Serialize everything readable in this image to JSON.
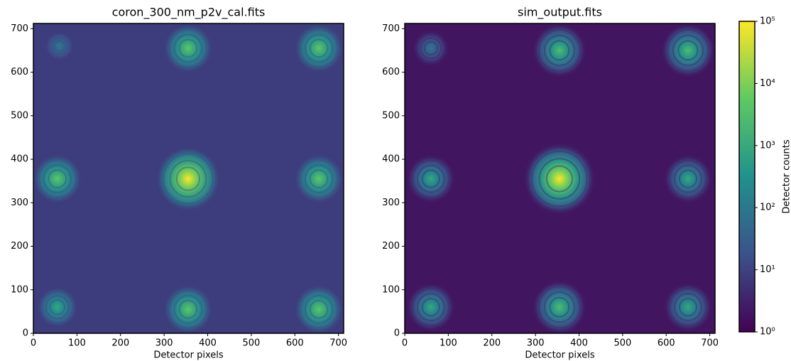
{
  "chart_data": [
    {
      "type": "image",
      "title": "coron_300_nm_p2v_cal.fits",
      "x_label": "Detector pixels",
      "xlim": [
        0,
        712
      ],
      "ylim": [
        0,
        712
      ],
      "xticks": [
        0,
        100,
        200,
        300,
        400,
        500,
        600,
        700
      ],
      "yticks": [
        0,
        100,
        200,
        300,
        400,
        500,
        600,
        700
      ],
      "background": 8,
      "spots": [
        {
          "x": 355,
          "y": 355,
          "peak": 100000
        },
        {
          "x": 355,
          "y": 655,
          "peak": 5000
        },
        {
          "x": 655,
          "y": 655,
          "peak": 5000
        },
        {
          "x": 55,
          "y": 355,
          "peak": 5000
        },
        {
          "x": 655,
          "y": 355,
          "peak": 5000
        },
        {
          "x": 355,
          "y": 55,
          "peak": 5000
        },
        {
          "x": 655,
          "y": 55,
          "peak": 5000
        },
        {
          "x": 55,
          "y": 60,
          "peak": 1000
        },
        {
          "x": 60,
          "y": 660,
          "peak": 100
        }
      ]
    },
    {
      "type": "image",
      "title": "sim_output.fits",
      "x_label": "Detector pixels",
      "xlim": [
        0,
        712
      ],
      "ylim": [
        0,
        712
      ],
      "xticks": [
        0,
        100,
        200,
        300,
        400,
        500,
        600,
        700
      ],
      "yticks": [
        0,
        100,
        200,
        300,
        400,
        500,
        600,
        700
      ],
      "background": 2,
      "spots": [
        {
          "x": 355,
          "y": 355,
          "peak": 100000
        },
        {
          "x": 355,
          "y": 650,
          "peak": 3000
        },
        {
          "x": 650,
          "y": 650,
          "peak": 3000
        },
        {
          "x": 60,
          "y": 355,
          "peak": 1000
        },
        {
          "x": 650,
          "y": 355,
          "peak": 1000
        },
        {
          "x": 355,
          "y": 60,
          "peak": 3000
        },
        {
          "x": 650,
          "y": 60,
          "peak": 1000
        },
        {
          "x": 60,
          "y": 60,
          "peak": 1000
        },
        {
          "x": 60,
          "y": 655,
          "peak": 100
        }
      ]
    },
    {
      "type": "colorbar",
      "label": "Detector counts",
      "log_scale": true,
      "colormap": "viridis",
      "ylim": [
        1,
        100000
      ],
      "yticks": [
        {
          "value": 1,
          "label": "10⁰"
        },
        {
          "value": 10,
          "label": "10¹"
        },
        {
          "value": 100,
          "label": "10²"
        },
        {
          "value": 1000,
          "label": "10³"
        },
        {
          "value": 10000,
          "label": "10⁴"
        },
        {
          "value": 100000,
          "label": "10⁵"
        }
      ]
    }
  ]
}
